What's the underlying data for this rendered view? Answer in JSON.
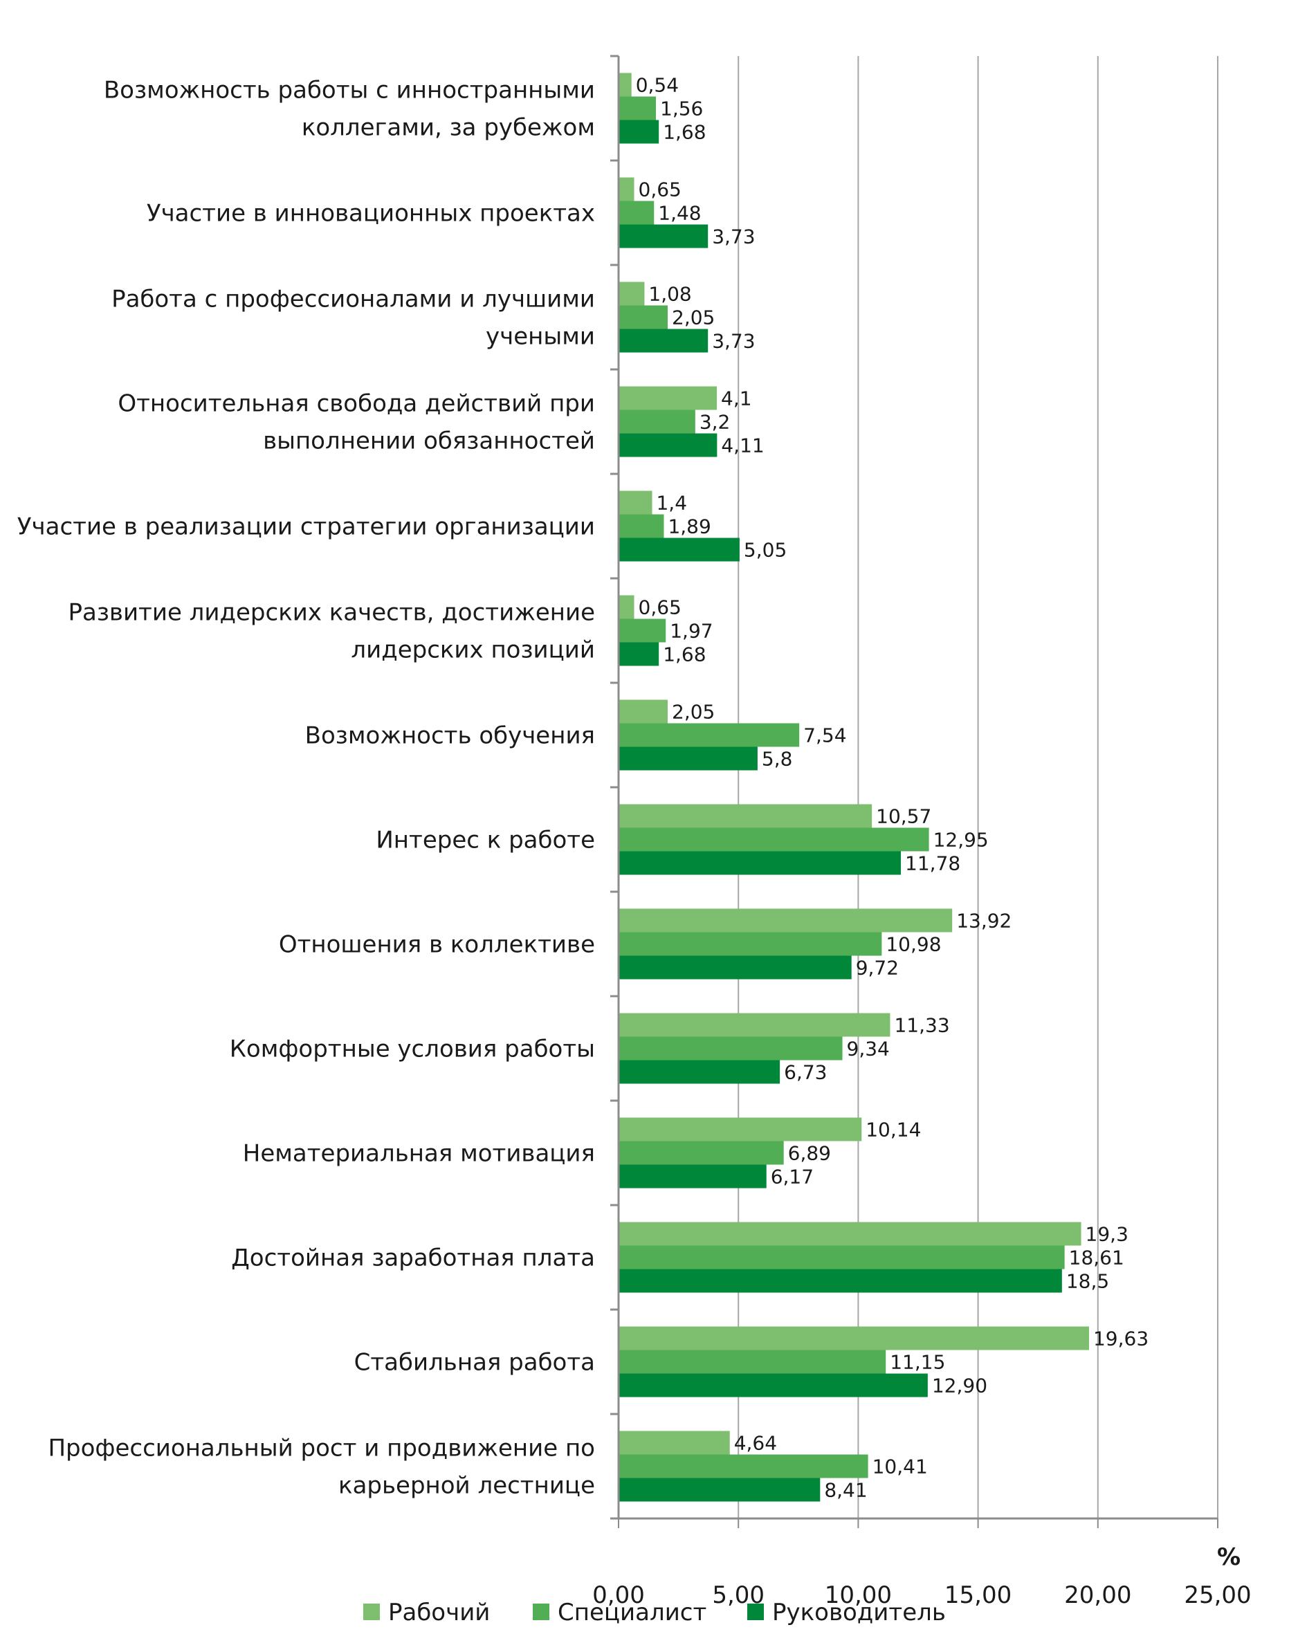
{
  "chart_data": {
    "type": "bar",
    "orientation": "horizontal",
    "title": "",
    "xlabel": "%",
    "ylabel": "",
    "xlim": [
      0,
      25
    ],
    "x_ticks": [
      0,
      5,
      10,
      15,
      20,
      25
    ],
    "x_tick_labels": [
      "0,00",
      "5,00",
      "10,00",
      "15,00",
      "20,00",
      "25,00"
    ],
    "grid": "vertical",
    "legend_position": "bottom",
    "categories": [
      [
        "Возможность работы с инностранными",
        "коллегами, за рубежом"
      ],
      [
        "Участие в инновационных проектах"
      ],
      [
        "Работа с профессионалами и лучшими",
        "учеными"
      ],
      [
        "Относительная свобода действий при",
        "выполнении обязанностей"
      ],
      [
        "Участие в реализации стратегии организации"
      ],
      [
        "Развитие лидерских качеств, достижение",
        "лидерских позиций"
      ],
      [
        "Возможность обучения"
      ],
      [
        "Интерес к работе"
      ],
      [
        "Отношения в коллективе"
      ],
      [
        "Комфортные условия работы"
      ],
      [
        "Нематериальная мотивация"
      ],
      [
        "Достойная заработная плата"
      ],
      [
        "Стабильная работа"
      ],
      [
        "Профессиональный рост и продвижение по",
        "карьерной лестнице"
      ]
    ],
    "series": [
      {
        "name": "Рабочий",
        "color": "#7dbf6e",
        "values": [
          0.54,
          0.65,
          1.08,
          4.1,
          1.4,
          0.65,
          2.05,
          10.57,
          13.92,
          11.33,
          10.14,
          19.3,
          19.63,
          4.64
        ],
        "labels": [
          "0,54",
          "0,65",
          "1,08",
          "4,1",
          "1,4",
          "0,65",
          "2,05",
          "10,57",
          "13,92",
          "11,33",
          "10,14",
          "19,3",
          "19,63",
          "4,64"
        ]
      },
      {
        "name": "Специалист",
        "color": "#52ae55",
        "values": [
          1.56,
          1.48,
          2.05,
          3.2,
          1.89,
          1.97,
          7.54,
          12.95,
          10.98,
          9.34,
          6.89,
          18.61,
          11.15,
          10.41
        ],
        "labels": [
          "1,56",
          "1,48",
          "2,05",
          "3,2",
          "1,89",
          "1,97",
          "7,54",
          "12,95",
          "10,98",
          "9,34",
          "6,89",
          "18,61",
          "11,15",
          "10,41"
        ]
      },
      {
        "name": "Руководитель",
        "color": "#00873a",
        "values": [
          1.68,
          3.73,
          3.73,
          4.11,
          5.05,
          1.68,
          5.8,
          11.78,
          9.72,
          6.73,
          6.17,
          18.5,
          12.9,
          8.41
        ],
        "labels": [
          "1,68",
          "3,73",
          "3,73",
          "4,11",
          "5,05",
          "1,68",
          "5,8",
          "11,78",
          "9,72",
          "6,73",
          "6,17",
          "18,5",
          "12,90",
          "8,41"
        ]
      }
    ]
  }
}
